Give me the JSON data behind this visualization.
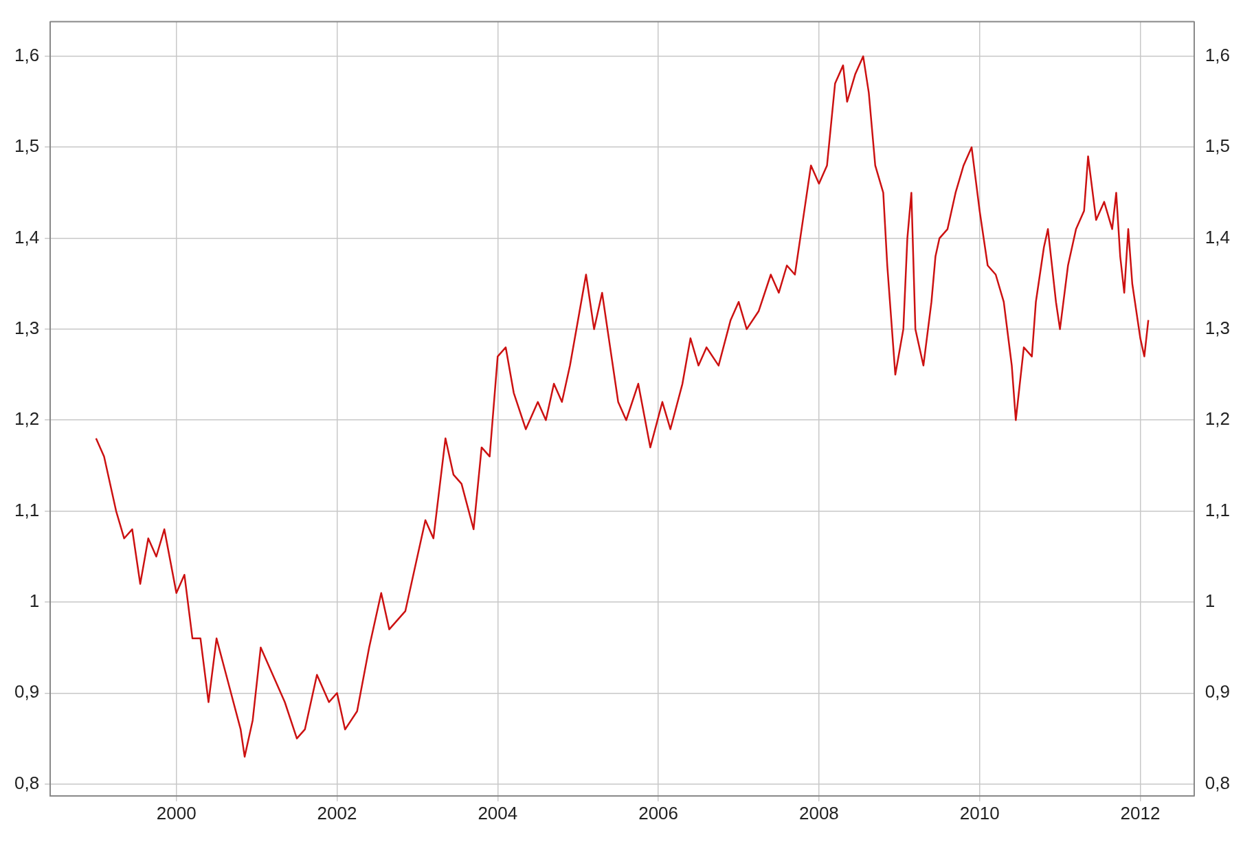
{
  "chart_data": {
    "type": "line",
    "x": [
      1999.0,
      1999.1,
      1999.25,
      1999.35,
      1999.45,
      1999.55,
      1999.65,
      1999.75,
      1999.85,
      2000.0,
      2000.1,
      2000.2,
      2000.3,
      2000.4,
      2000.5,
      2000.65,
      2000.8,
      2000.85,
      2000.95,
      2001.05,
      2001.2,
      2001.35,
      2001.5,
      2001.6,
      2001.75,
      2001.9,
      2002.0,
      2002.1,
      2002.25,
      2002.4,
      2002.55,
      2002.65,
      2002.85,
      2003.0,
      2003.1,
      2003.2,
      2003.35,
      2003.45,
      2003.55,
      2003.7,
      2003.8,
      2003.9,
      2004.0,
      2004.1,
      2004.2,
      2004.35,
      2004.5,
      2004.6,
      2004.7,
      2004.8,
      2004.9,
      2005.0,
      2005.1,
      2005.2,
      2005.3,
      2005.4,
      2005.5,
      2005.6,
      2005.75,
      2005.9,
      2006.05,
      2006.15,
      2006.3,
      2006.4,
      2006.5,
      2006.6,
      2006.75,
      2006.9,
      2007.0,
      2007.1,
      2007.25,
      2007.4,
      2007.5,
      2007.6,
      2007.7,
      2007.8,
      2007.9,
      2008.0,
      2008.1,
      2008.2,
      2008.3,
      2008.35,
      2008.45,
      2008.55,
      2008.62,
      2008.7,
      2008.8,
      2008.85,
      2008.95,
      2009.05,
      2009.1,
      2009.15,
      2009.2,
      2009.3,
      2009.4,
      2009.45,
      2009.5,
      2009.6,
      2009.7,
      2009.8,
      2009.9,
      2010.0,
      2010.1,
      2010.2,
      2010.3,
      2010.4,
      2010.45,
      2010.55,
      2010.65,
      2010.7,
      2010.8,
      2010.85,
      2010.95,
      2011.0,
      2011.1,
      2011.2,
      2011.3,
      2011.35,
      2011.45,
      2011.55,
      2011.65,
      2011.7,
      2011.75,
      2011.8,
      2011.85,
      2011.9,
      2012.0,
      2012.05,
      2012.1
    ],
    "series": [
      {
        "color": "#cc1111",
        "values": [
          1.18,
          1.16,
          1.1,
          1.07,
          1.08,
          1.02,
          1.07,
          1.05,
          1.08,
          1.01,
          1.03,
          0.96,
          0.96,
          0.89,
          0.96,
          0.91,
          0.86,
          0.83,
          0.87,
          0.95,
          0.92,
          0.89,
          0.85,
          0.86,
          0.92,
          0.89,
          0.9,
          0.86,
          0.88,
          0.95,
          1.01,
          0.97,
          0.99,
          1.05,
          1.09,
          1.07,
          1.18,
          1.14,
          1.13,
          1.08,
          1.17,
          1.16,
          1.27,
          1.28,
          1.23,
          1.19,
          1.22,
          1.2,
          1.24,
          1.22,
          1.26,
          1.31,
          1.36,
          1.3,
          1.34,
          1.28,
          1.22,
          1.2,
          1.24,
          1.17,
          1.22,
          1.19,
          1.24,
          1.29,
          1.26,
          1.28,
          1.26,
          1.31,
          1.33,
          1.3,
          1.32,
          1.36,
          1.34,
          1.37,
          1.36,
          1.42,
          1.48,
          1.46,
          1.48,
          1.57,
          1.59,
          1.55,
          1.58,
          1.6,
          1.56,
          1.48,
          1.45,
          1.37,
          1.25,
          1.3,
          1.4,
          1.45,
          1.3,
          1.26,
          1.33,
          1.38,
          1.4,
          1.41,
          1.45,
          1.48,
          1.5,
          1.43,
          1.37,
          1.36,
          1.33,
          1.26,
          1.2,
          1.28,
          1.27,
          1.33,
          1.39,
          1.41,
          1.33,
          1.3,
          1.37,
          1.41,
          1.43,
          1.49,
          1.42,
          1.44,
          1.41,
          1.45,
          1.38,
          1.34,
          1.41,
          1.35,
          1.29,
          1.27,
          1.31
        ]
      }
    ],
    "xlim": [
      1998.43,
      2012.67
    ],
    "xticks": [
      2000,
      2002,
      2004,
      2006,
      2008,
      2010,
      2012
    ],
    "ylim": [
      0.787,
      1.638
    ],
    "yticks": [
      {
        "value": 0.8,
        "label": "0,8"
      },
      {
        "value": 0.9,
        "label": "0,9"
      },
      1,
      {
        "value": 1.1,
        "label": "1,1"
      },
      {
        "value": 1.2,
        "label": "1,2"
      },
      {
        "value": 1.3,
        "label": "1,3"
      },
      {
        "value": 1.4,
        "label": "1,4"
      },
      {
        "value": 1.5,
        "label": "1,5"
      },
      {
        "value": 1.6,
        "label": "1,6"
      }
    ],
    "y2lim": [
      0.787,
      1.638
    ],
    "y2ticks": [
      {
        "value": 0.8,
        "label": "0,8"
      },
      {
        "value": 0.9,
        "label": "0,9"
      },
      1,
      {
        "value": 1.1,
        "label": "1,1"
      },
      {
        "value": 1.2,
        "label": "1,2"
      },
      {
        "value": 1.3,
        "label": "1,3"
      },
      {
        "value": 1.4,
        "label": "1,4"
      },
      {
        "value": 1.5,
        "label": "1,5"
      },
      {
        "value": 1.6,
        "label": "1,6"
      }
    ],
    "grid": true,
    "marker": "none",
    "line_style": "solid",
    "legend": false
  }
}
